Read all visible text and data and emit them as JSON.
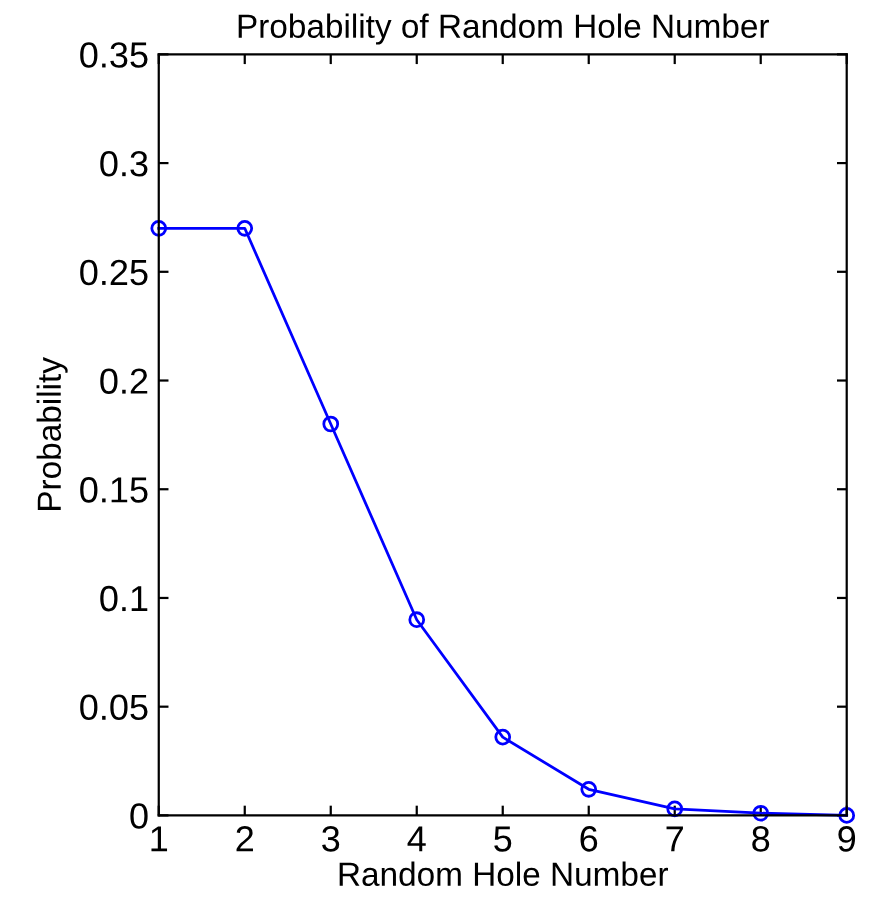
{
  "chart_data": {
    "type": "line",
    "title": "Probability of Random Hole Number",
    "xlabel": "Random Hole Number",
    "ylabel": "Probability",
    "x": [
      1,
      2,
      3,
      4,
      5,
      6,
      7,
      8,
      9
    ],
    "series": [
      {
        "color": "#0000ff",
        "values": [
          0.27,
          0.27,
          0.18,
          0.09,
          0.036,
          0.012,
          0.003,
          0.001,
          0.0
        ]
      }
    ],
    "xlim": [
      1,
      9
    ],
    "xticks": [
      1,
      2,
      3,
      4,
      5,
      6,
      7,
      8,
      9
    ],
    "ylim": [
      0,
      0.35
    ],
    "yticks": [
      0,
      0.05,
      0.1,
      0.15,
      0.2,
      0.25,
      0.3,
      0.35
    ],
    "grid": false,
    "legend": false,
    "marker": "circle",
    "line_style": "solid"
  }
}
